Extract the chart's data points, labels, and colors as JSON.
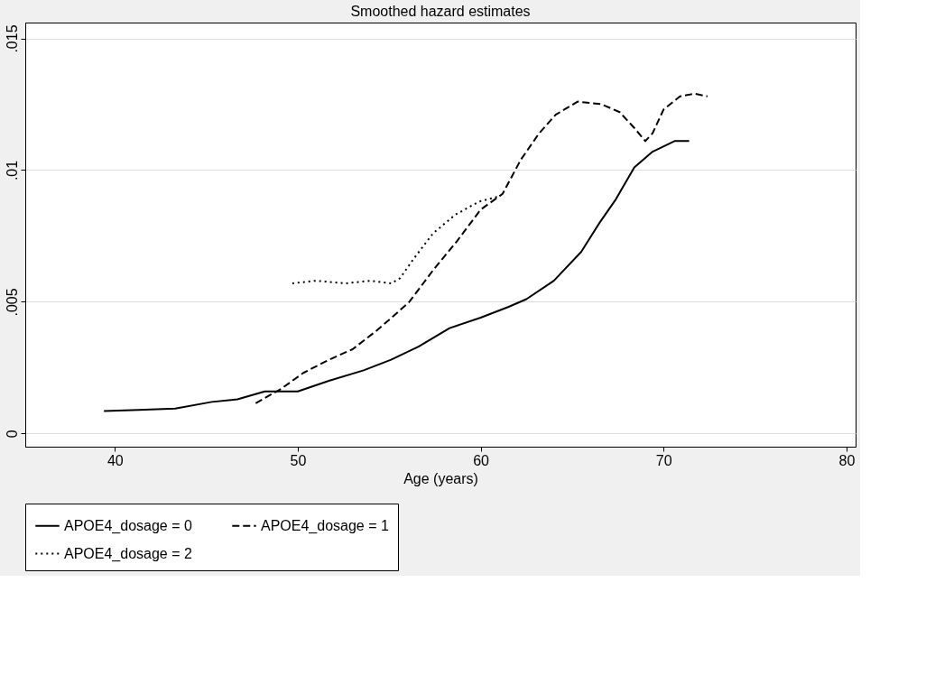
{
  "chart_data": {
    "type": "line",
    "title": "Smoothed hazard estimates",
    "xlabel": "Age (years)",
    "xlim": [
      35.1,
      80.5
    ],
    "xticks": [
      40,
      50,
      60,
      70,
      80
    ],
    "ylim": [
      -0.0005,
      0.0156
    ],
    "yticks": [
      {
        "value": 0,
        "label": "0"
      },
      {
        "value": 0.005,
        "label": ".005"
      },
      {
        "value": 0.01,
        "label": ".01"
      },
      {
        "value": 0.015,
        "label": ".015"
      }
    ],
    "grid": "y",
    "legend": "bottom",
    "series": [
      {
        "name": "APOE4_dosage = 0",
        "color": "#000000",
        "line_style": "solid",
        "x": [
          39.4,
          41.3,
          43.3,
          45.3,
          46.7,
          48.2,
          50,
          51.7,
          53.6,
          55.1,
          56.6,
          58.3,
          60,
          61.5,
          62.5,
          64,
          65.5,
          66.5,
          67.4,
          68.4,
          69.4,
          70.6,
          71.4
        ],
        "values": [
          0.00085,
          0.0009,
          0.00095,
          0.0012,
          0.0013,
          0.0016,
          0.0016,
          0.002,
          0.0024,
          0.0028,
          0.0033,
          0.004,
          0.0044,
          0.0048,
          0.0051,
          0.0058,
          0.0069,
          0.008,
          0.0089,
          0.0101,
          0.0107,
          0.0111,
          0.0111
        ]
      },
      {
        "name": "APOE4_dosage = 1",
        "color": "#000000",
        "line_style": "dashed",
        "x": [
          47.7,
          49.1,
          50.3,
          51.7,
          53,
          54.3,
          55.3,
          56.1,
          57.4,
          58.7,
          60,
          61.2,
          62.2,
          63.2,
          64.1,
          65.3,
          66.6,
          67.6,
          68.4,
          69,
          69.4,
          70,
          70.9,
          71.7,
          72.4
        ],
        "values": [
          0.00115,
          0.0017,
          0.0023,
          0.0028,
          0.0032,
          0.0039,
          0.0045,
          0.005,
          0.0062,
          0.0073,
          0.0085,
          0.0091,
          0.0104,
          0.0114,
          0.0121,
          0.0126,
          0.0125,
          0.0122,
          0.0116,
          0.0111,
          0.0114,
          0.0123,
          0.0128,
          0.0129,
          0.0128
        ]
      },
      {
        "name": "APOE4_dosage = 2",
        "color": "#000000",
        "line_style": "dotted",
        "x": [
          49.7,
          51,
          52.6,
          54,
          55.1,
          55.6,
          56.3,
          57.4,
          58.6,
          59.9,
          61
        ],
        "values": [
          0.0057,
          0.0058,
          0.0057,
          0.0058,
          0.0057,
          0.0059,
          0.0066,
          0.0076,
          0.0083,
          0.0088,
          0.009
        ]
      }
    ]
  }
}
